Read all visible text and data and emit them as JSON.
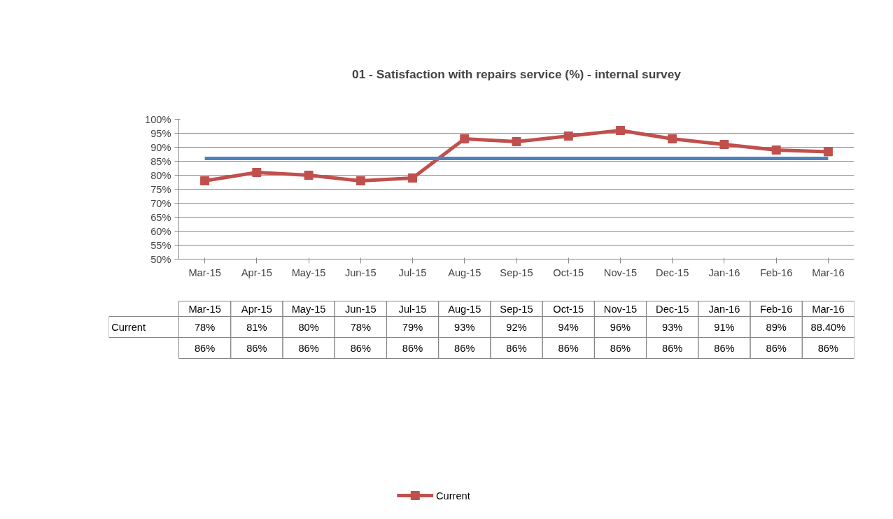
{
  "chart_data": {
    "type": "line",
    "title": "01 - Satisfaction with repairs service (%) - internal survey",
    "categories": [
      "Mar-15",
      "Apr-15",
      "May-15",
      "Jun-15",
      "Jul-15",
      "Aug-15",
      "Sep-15",
      "Oct-15",
      "Nov-15",
      "Dec-15",
      "Jan-16",
      "Feb-16",
      "Mar-16"
    ],
    "series": [
      {
        "name": "Current",
        "color": "#c0504d",
        "marker": "square",
        "values": [
          78,
          81,
          80,
          78,
          79,
          93,
          92,
          94,
          96,
          93,
          91,
          89,
          88.4
        ],
        "value_labels": [
          "78%",
          "81%",
          "80%",
          "78%",
          "79%",
          "93%",
          "92%",
          "94%",
          "96%",
          "93%",
          "91%",
          "89%",
          "88.40%"
        ]
      },
      {
        "color": "#4f81bd",
        "marker": "none",
        "values": [
          86,
          86,
          86,
          86,
          86,
          86,
          86,
          86,
          86,
          86,
          86,
          86,
          86
        ],
        "value_labels": [
          "86%",
          "86%",
          "86%",
          "86%",
          "86%",
          "86%",
          "86%",
          "86%",
          "86%",
          "86%",
          "86%",
          "86%",
          "86%"
        ]
      }
    ],
    "ylim": [
      50,
      100
    ],
    "yticks": [
      {
        "value": 50,
        "label": "50%"
      },
      {
        "value": 55,
        "label": "55%"
      },
      {
        "value": 60,
        "label": "60%"
      },
      {
        "value": 65,
        "label": "65%"
      },
      {
        "value": 70,
        "label": "70%"
      },
      {
        "value": 75,
        "label": "75%"
      },
      {
        "value": 80,
        "label": "80%"
      },
      {
        "value": 85,
        "label": "85%"
      },
      {
        "value": 90,
        "label": "90%"
      },
      {
        "value": 95,
        "label": "95%"
      },
      {
        "value": 100,
        "label": "100%"
      }
    ],
    "grid": "y",
    "legend": "bottom",
    "line_style": "solid"
  }
}
